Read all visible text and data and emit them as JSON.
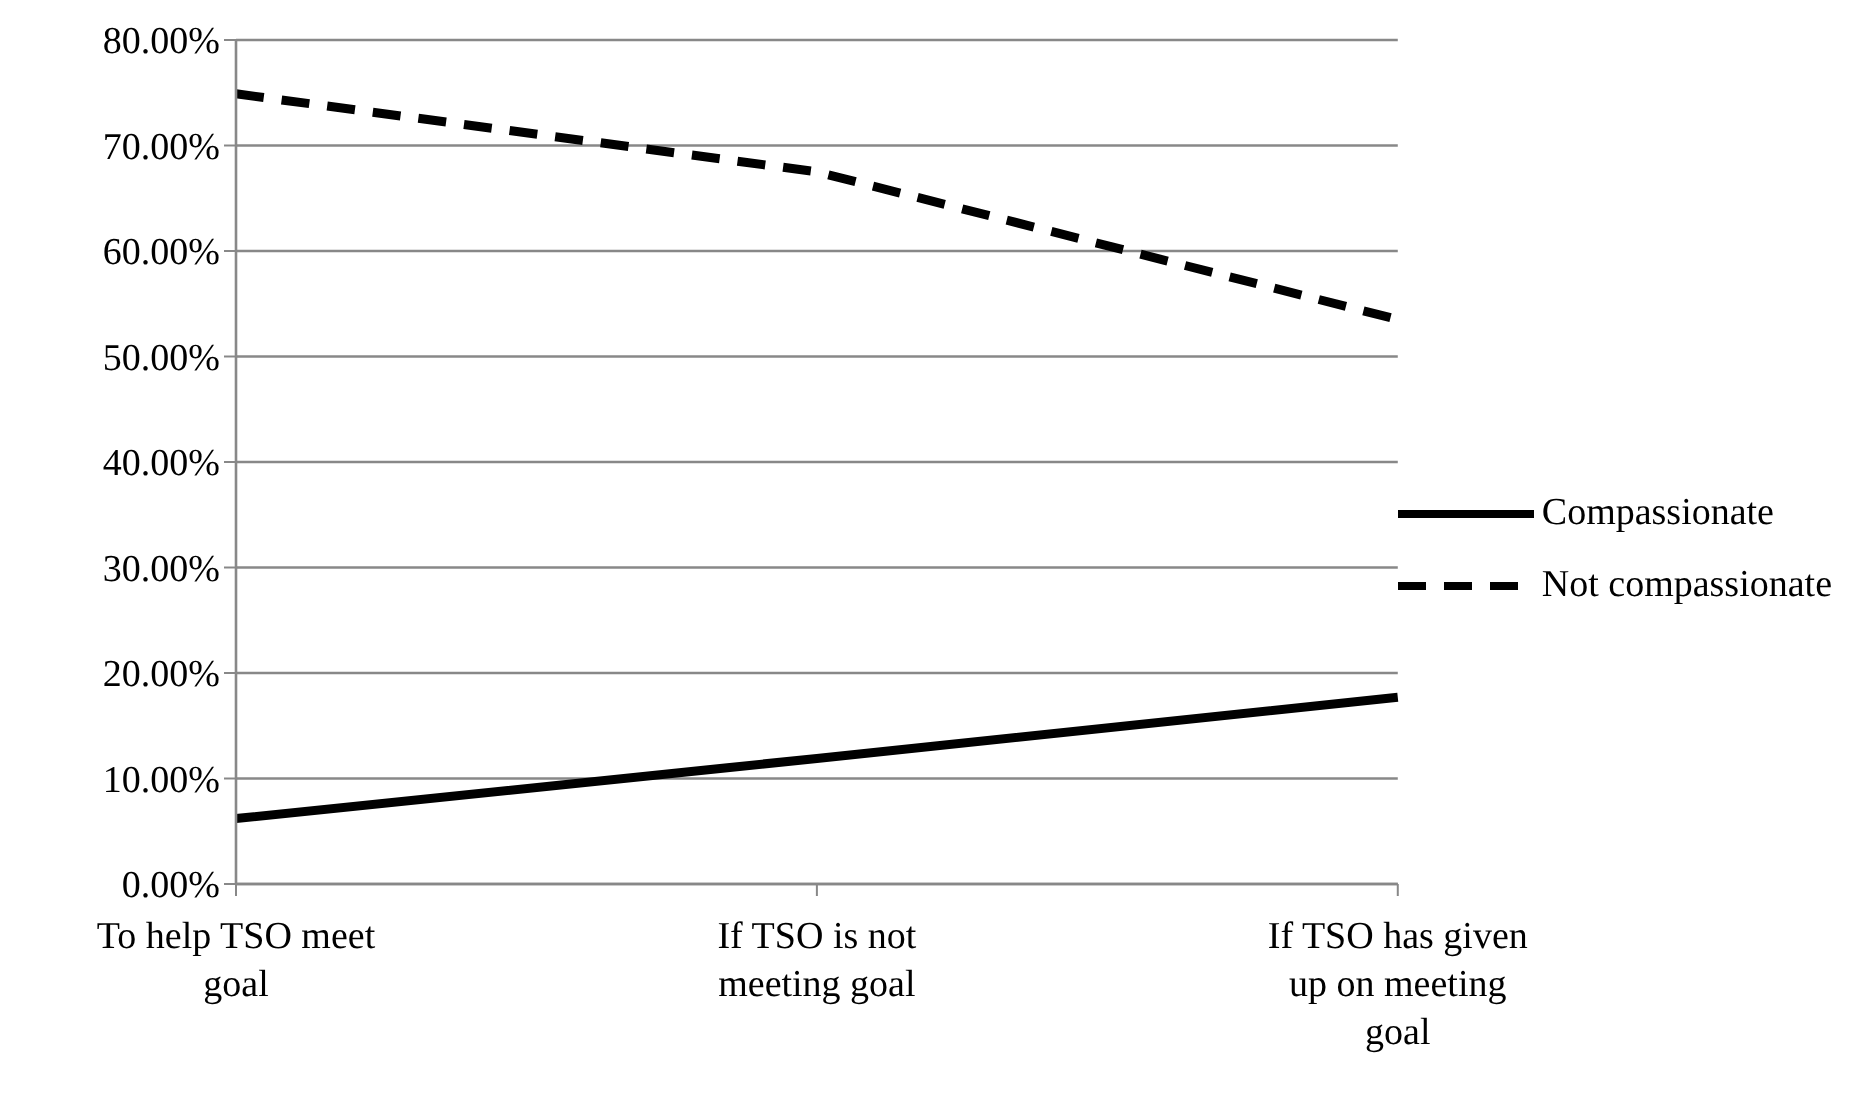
{
  "chart_data": {
    "type": "line",
    "categories": [
      "To help TSO meet goal",
      "If TSO is not meeting goal",
      "If TSO has given up on meeting goal"
    ],
    "series": [
      {
        "name": "Compassionate",
        "color": "#000000",
        "line_style": "solid",
        "values": [
          6.2,
          11.9,
          17.7
        ]
      },
      {
        "name": "Not compassionate",
        "color": "#000000",
        "line_style": "dashed",
        "values": [
          74.9,
          67.5,
          53.5
        ]
      }
    ],
    "ylim": [
      0,
      80
    ],
    "yticks": [
      {
        "value": 0,
        "label": "0.00%"
      },
      {
        "value": 10,
        "label": "10.00%"
      },
      {
        "value": 20,
        "label": "20.00%"
      },
      {
        "value": 30,
        "label": "30.00%"
      },
      {
        "value": 40,
        "label": "40.00%"
      },
      {
        "value": 50,
        "label": "50.00%"
      },
      {
        "value": 60,
        "label": "60.00%"
      },
      {
        "value": 70,
        "label": "70.00%"
      },
      {
        "value": 80,
        "label": "80.00%"
      }
    ],
    "grid": "y",
    "legend": "right",
    "marker": "none"
  }
}
